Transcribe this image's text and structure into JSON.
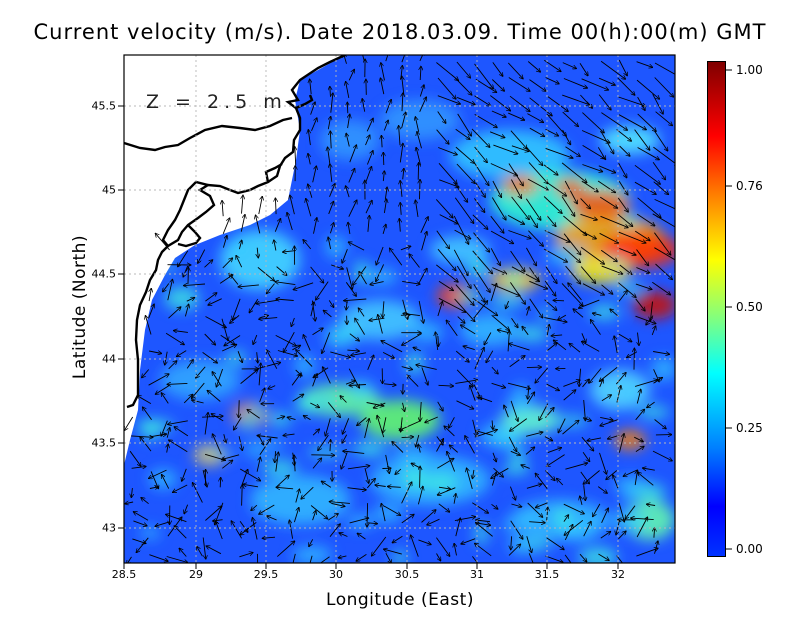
{
  "title": "Current velocity (m/s). Date 2018.03.09. Time 00(h):00(m) GMT",
  "depth_label": "Z = 2.5 m",
  "axes": {
    "xlabel": "Longitude (East)",
    "ylabel": "Latitude (North)",
    "xticks": [
      "28.5",
      "29",
      "29.5",
      "30",
      "30.5",
      "31",
      "31.5",
      "32"
    ],
    "yticks": [
      "45.5",
      "45",
      "44.5",
      "44",
      "43.5",
      "43"
    ],
    "xlim": [
      28.5,
      32.4
    ],
    "ylim": [
      42.8,
      45.8
    ]
  },
  "colorbar": {
    "ticks": [
      "1.00",
      "0.76",
      "0.50",
      "0.25",
      "0.00"
    ],
    "range": [
      0,
      1
    ],
    "colors": [
      "#800000",
      "#ff0000",
      "#ffff00",
      "#00ffff",
      "#0000ff"
    ]
  },
  "colors": {
    "sea_base": "#1e56ff",
    "land": "#ffffff",
    "coast": "#000000",
    "grid": "#b8b8b8"
  }
}
